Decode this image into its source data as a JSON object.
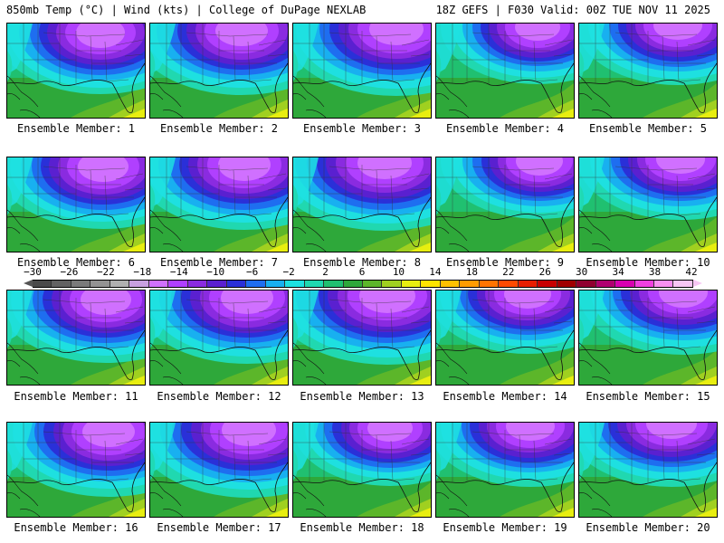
{
  "header": {
    "left": "850mb Temp (°C) | Wind (kts) | College of DuPage NEXLAB",
    "right": "18Z GEFS | F030 Valid: 00Z TUE NOV 11 2025"
  },
  "colorbar": {
    "ticks": [
      "−30",
      "−26",
      "−22",
      "−18",
      "−14",
      "−10",
      "−6",
      "−2",
      "2",
      "6",
      "10",
      "14",
      "18",
      "22",
      "26",
      "30",
      "34",
      "38",
      "42"
    ],
    "colors": [
      "#4a4a4a",
      "#626262",
      "#7a7a7a",
      "#939393",
      "#b0b0b0",
      "#c8a0e0",
      "#d070ff",
      "#b040ff",
      "#8a2be0",
      "#5a20d0",
      "#2a30d8",
      "#1e6ef0",
      "#18b0f0",
      "#1ee0e0",
      "#20d8b0",
      "#20c070",
      "#2ea83a",
      "#5cb62a",
      "#a0d020",
      "#e8ee10",
      "#ffe400",
      "#ffc000",
      "#ff9c00",
      "#ff7400",
      "#ff4a00",
      "#e81e00",
      "#c80000",
      "#a00000",
      "#900030",
      "#b00070",
      "#d800b0",
      "#f040e0",
      "#f890f0",
      "#f7c6f4"
    ]
  },
  "panels": [
    {
      "label": "Ensemble Member: 1"
    },
    {
      "label": "Ensemble Member: 2"
    },
    {
      "label": "Ensemble Member: 3"
    },
    {
      "label": "Ensemble Member: 4"
    },
    {
      "label": "Ensemble Member: 5"
    },
    {
      "label": "Ensemble Member: 6"
    },
    {
      "label": "Ensemble Member: 7"
    },
    {
      "label": "Ensemble Member: 8"
    },
    {
      "label": "Ensemble Member: 9"
    },
    {
      "label": "Ensemble Member: 10"
    },
    {
      "label": "Ensemble Member: 11"
    },
    {
      "label": "Ensemble Member: 12"
    },
    {
      "label": "Ensemble Member: 13"
    },
    {
      "label": "Ensemble Member: 14"
    },
    {
      "label": "Ensemble Member: 15"
    },
    {
      "label": "Ensemble Member: 16"
    },
    {
      "label": "Ensemble Member: 17"
    },
    {
      "label": "Ensemble Member: 18"
    },
    {
      "label": "Ensemble Member: 19"
    },
    {
      "label": "Ensemble Member: 20"
    }
  ]
}
